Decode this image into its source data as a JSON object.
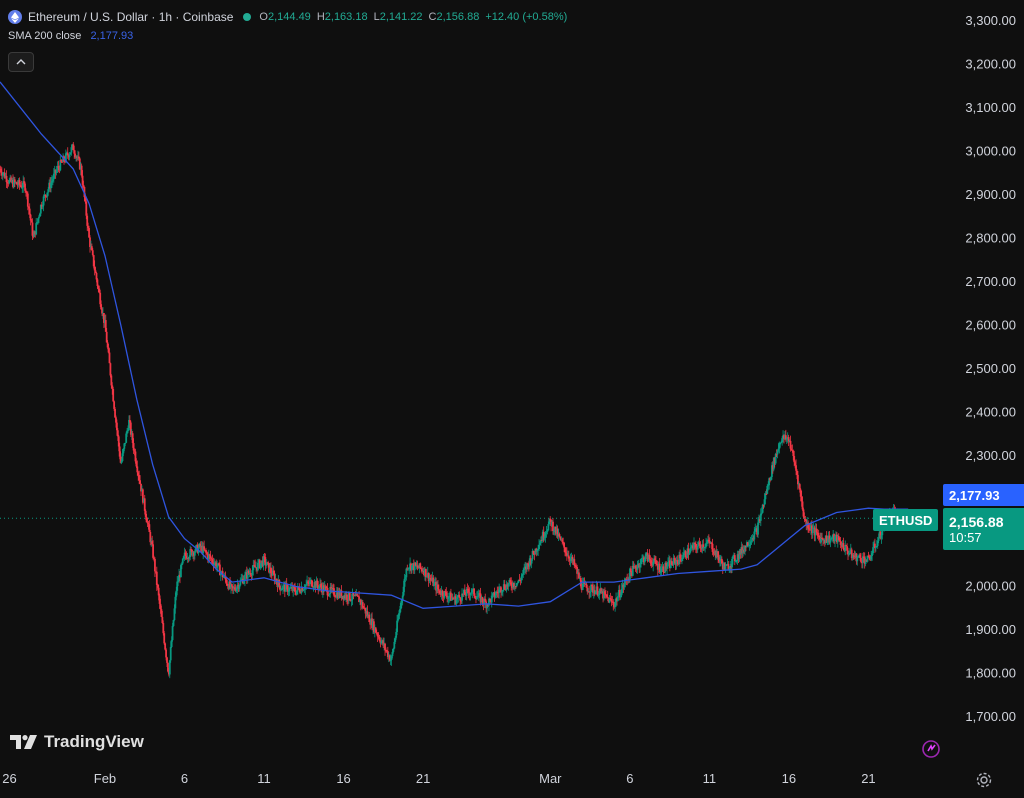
{
  "header": {
    "title": "Ethereum / U.S. Dollar · 1h · Coinbase",
    "ohlc": [
      {
        "key": "O",
        "value": "2,144.49"
      },
      {
        "key": "H",
        "value": "2,163.18"
      },
      {
        "key": "L",
        "value": "2,141.22"
      },
      {
        "key": "C",
        "value": "2,156.88"
      }
    ],
    "change": "+12.40 (+0.58%)"
  },
  "indicator": {
    "label": "SMA 200 close",
    "value": "2,177.93"
  },
  "brand": {
    "name": "TradingView"
  },
  "tags": {
    "sma_value": "2,177.93",
    "symbol": "ETHUSD",
    "last_price": "2,156.88",
    "countdown": "10:57"
  },
  "colors": {
    "up": "#089981",
    "down": "#f23645",
    "sma": "#2962ff",
    "background": "#0f0f0f"
  },
  "chart_data": {
    "type": "line",
    "subtype": "candlestick",
    "ylim": [
      1700,
      3300
    ],
    "yticks": [
      1700,
      1800,
      1900,
      2000,
      2100,
      2200,
      2300,
      2400,
      2500,
      2600,
      2700,
      2800,
      2900,
      3000,
      3100,
      3200,
      3300
    ],
    "ytick_labels": [
      "1,700.00",
      "1,800.00",
      "1,900.00",
      "2,000.00",
      "2,100.00",
      "2,200.00",
      "2,300.00",
      "2,400.00",
      "2,500.00",
      "2,600.00",
      "2,700.00",
      "2,800.00",
      "2,900.00",
      "3,000.00",
      "3,100.00",
      "3,200.00",
      "3,300.00"
    ],
    "xtick_labels": [
      "26",
      "Feb",
      "6",
      "11",
      "16",
      "21",
      "Mar",
      "6",
      "11",
      "16",
      "21"
    ],
    "x_day_index": [
      0,
      6,
      11,
      16,
      21,
      26,
      34,
      39,
      44,
      49,
      54
    ],
    "x_range_days": [
      -0.6,
      58.5
    ],
    "price_series": {
      "name": "ETHUSD",
      "x": [
        -0.6,
        0,
        1,
        1.5,
        2,
        3,
        4,
        4.5,
        5,
        5.5,
        6,
        7,
        7.5,
        8,
        9,
        10,
        10.5,
        11,
        12,
        13,
        14,
        15,
        16,
        17,
        18,
        19,
        20,
        21,
        22,
        23,
        24,
        25,
        26,
        27,
        28,
        29,
        30,
        31,
        32,
        33,
        34,
        35,
        35.5,
        36,
        37,
        38,
        39,
        40,
        41,
        42,
        43,
        44,
        45,
        46,
        47,
        48,
        48.5,
        49,
        49.5,
        50,
        51,
        52,
        53,
        54,
        55,
        55.5,
        56,
        56.5
      ],
      "y": [
        2960,
        2930,
        2920,
        2800,
        2880,
        2960,
        3010,
        2960,
        2800,
        2700,
        2600,
        2280,
        2380,
        2280,
        2080,
        1800,
        2000,
        2070,
        2090,
        2050,
        1990,
        2030,
        2060,
        2000,
        1990,
        2010,
        1990,
        1980,
        1970,
        1900,
        1830,
        2050,
        2040,
        1990,
        1970,
        1990,
        1960,
        2000,
        2010,
        2080,
        2150,
        2080,
        2050,
        2000,
        1990,
        1960,
        2030,
        2070,
        2040,
        2060,
        2090,
        2100,
        2040,
        2080,
        2130,
        2280,
        2340,
        2340,
        2260,
        2150,
        2110,
        2110,
        2070,
        2060,
        2140,
        2170,
        2157,
        2157
      ]
    },
    "sma_series": {
      "name": "SMA 200 close",
      "x": [
        -0.6,
        2,
        4,
        5,
        6,
        7,
        8,
        9,
        10,
        11,
        12,
        13,
        14,
        16,
        18,
        20,
        22,
        24,
        26,
        28,
        30,
        32,
        34,
        36,
        38,
        40,
        42,
        44,
        46,
        47,
        48,
        49,
        50,
        52,
        54,
        55,
        56,
        56.5
      ],
      "y": [
        3160,
        3040,
        2960,
        2880,
        2760,
        2600,
        2430,
        2280,
        2160,
        2110,
        2080,
        2040,
        2010,
        2020,
        2000,
        1990,
        1985,
        1980,
        1950,
        1955,
        1960,
        1955,
        1965,
        2010,
        2010,
        2020,
        2030,
        2035,
        2040,
        2050,
        2080,
        2110,
        2140,
        2170,
        2180,
        2178,
        2178,
        2178
      ]
    },
    "last_price": 2156.88,
    "sma_last": 2177.93,
    "grid": false,
    "legend": "top-left"
  }
}
